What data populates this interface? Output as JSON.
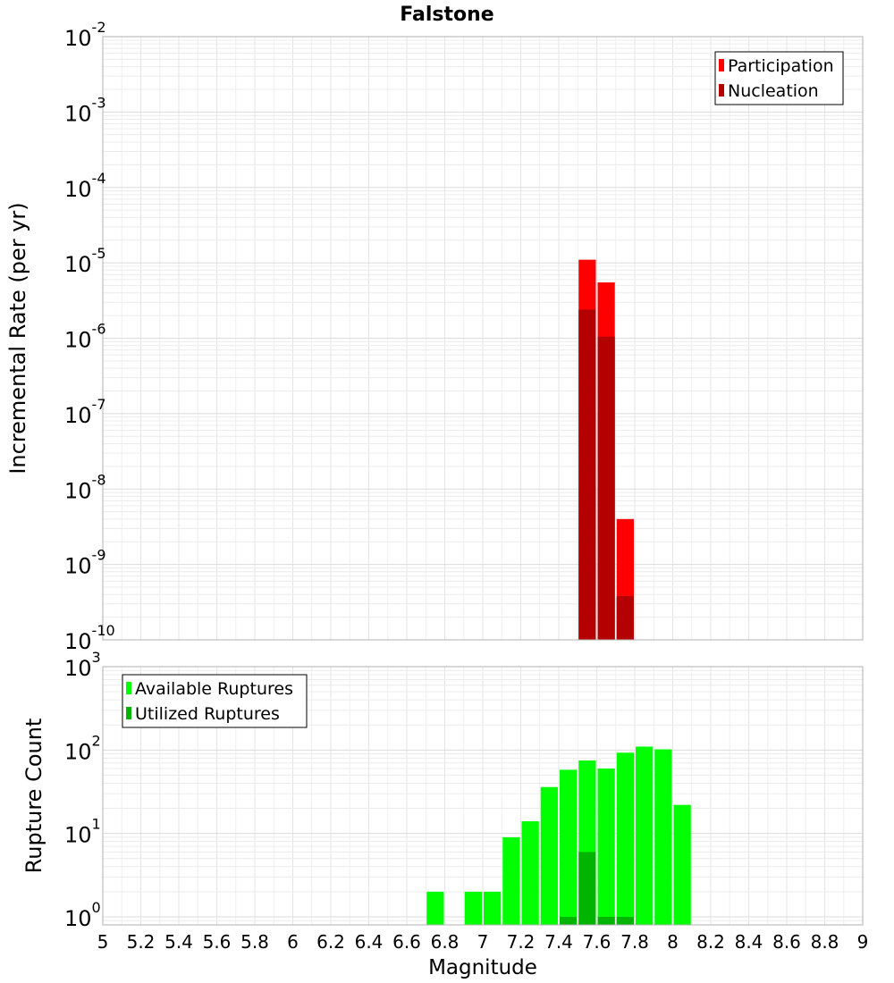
{
  "chart_data": [
    {
      "type": "bar",
      "title": "Falstone",
      "ylabel": "Incremental Rate (per yr)",
      "xlabel": "",
      "y_scale": "log",
      "xlim": [
        5,
        9
      ],
      "ylim": [
        1e-10,
        0.01
      ],
      "y_tick_labels": [
        {
          "base": "10",
          "exp": "-10",
          "value": 1e-10
        },
        {
          "base": "10",
          "exp": "-9",
          "value": 1e-09
        },
        {
          "base": "10",
          "exp": "-8",
          "value": 1e-08
        },
        {
          "base": "10",
          "exp": "-7",
          "value": 1e-07
        },
        {
          "base": "10",
          "exp": "-6",
          "value": 1e-06
        },
        {
          "base": "10",
          "exp": "-5",
          "value": 1e-05
        },
        {
          "base": "10",
          "exp": "-4",
          "value": 0.0001
        },
        {
          "base": "10",
          "exp": "-3",
          "value": 0.001
        },
        {
          "base": "10",
          "exp": "-2",
          "value": 0.01
        }
      ],
      "legend_position": "top-right",
      "grid": true,
      "series": [
        {
          "name": "Participation",
          "color": "#ff0000",
          "x": [
            7.55,
            7.65,
            7.75
          ],
          "values": [
            1.1e-05,
            5.5e-06,
            4e-09
          ]
        },
        {
          "name": "Nucleation",
          "color": "#b40000",
          "x": [
            7.55,
            7.65,
            7.75
          ],
          "values": [
            2.4e-06,
            1.05e-06,
            3.8e-10
          ]
        }
      ]
    },
    {
      "type": "bar",
      "title": "",
      "ylabel": "Rupture Count",
      "xlabel": "Magnitude",
      "y_scale": "log",
      "xlim": [
        5,
        9
      ],
      "ylim": [
        0.8,
        1000
      ],
      "y_tick_labels": [
        {
          "base": "10",
          "exp": "0",
          "value": 1
        },
        {
          "base": "10",
          "exp": "1",
          "value": 10
        },
        {
          "base": "10",
          "exp": "2",
          "value": 100
        },
        {
          "base": "10",
          "exp": "3",
          "value": 1000
        }
      ],
      "x_tick_labels": [
        "5",
        "5.2",
        "5.4",
        "5.6",
        "5.8",
        "6",
        "6.2",
        "6.4",
        "6.6",
        "6.8",
        "7",
        "7.2",
        "7.4",
        "7.6",
        "7.8",
        "8",
        "8.2",
        "8.4",
        "8.6",
        "8.8",
        "9"
      ],
      "legend_position": "top-left",
      "grid": true,
      "series": [
        {
          "name": "Available Ruptures",
          "color": "#00ff00",
          "x": [
            6.75,
            6.95,
            7.05,
            7.15,
            7.25,
            7.35,
            7.45,
            7.55,
            7.65,
            7.75,
            7.85,
            7.95,
            8.05
          ],
          "values": [
            2,
            2,
            2,
            9,
            14,
            36,
            58,
            75,
            60,
            93,
            110,
            102,
            22
          ]
        },
        {
          "name": "Utilized Ruptures",
          "color": "#00b400",
          "x": [
            7.45,
            7.55,
            7.65,
            7.75
          ],
          "values": [
            1,
            6,
            1,
            1
          ]
        }
      ]
    }
  ]
}
